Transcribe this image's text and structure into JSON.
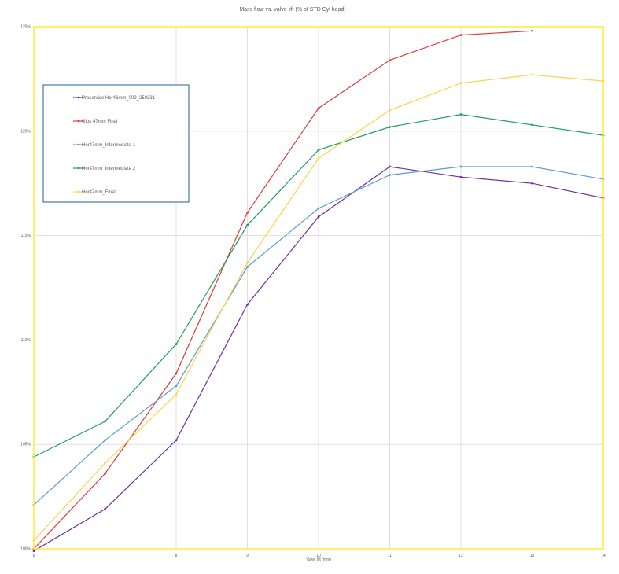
{
  "chart_data": {
    "type": "line",
    "title": "Mass flow vs. valve lift (% of STD Cyl head)",
    "xlabel": "Valve lift (mm)",
    "ylabel": "",
    "xlim": [
      6,
      14
    ],
    "ylim": [
      100,
      125
    ],
    "x_ticks": [
      "6",
      "7",
      "8",
      "9",
      "10",
      "11",
      "12",
      "13",
      "14"
    ],
    "y_ticks": [
      "100%",
      "105%",
      "110%",
      "115%",
      "120%",
      "125%"
    ],
    "grid": true,
    "legend_position": "top-left",
    "plot_border_color": "#FFEB3B",
    "legend_border_color": "#1F5F8B",
    "series": [
      {
        "name": "Proservice Hor46mm_002_250331",
        "color": "#7030A0",
        "x": [
          6,
          7,
          8,
          9,
          10,
          11,
          12,
          13,
          14
        ],
        "y": [
          99.9,
          101.9,
          105.2,
          111.7,
          115.9,
          118.3,
          117.8,
          117.5,
          116.8
        ]
      },
      {
        "name": "Gips 47mm Final",
        "color": "#E53935",
        "x": [
          6,
          7,
          8,
          9,
          10,
          11,
          12,
          13
        ],
        "y": [
          100.0,
          103.6,
          108.4,
          116.1,
          121.1,
          123.4,
          124.6,
          124.8
        ]
      },
      {
        "name": "Hor47mm_Intermediate 1",
        "color": "#5B9BD5",
        "x": [
          6,
          7,
          8,
          9,
          10,
          11,
          12,
          13,
          14
        ],
        "y": [
          102.1,
          105.2,
          107.8,
          113.5,
          116.3,
          117.9,
          118.3,
          118.3,
          117.7
        ]
      },
      {
        "name": "Hor47mm_Intermediate 2",
        "color": "#1EA05A",
        "x": [
          6,
          7,
          8,
          9,
          10,
          11,
          12,
          13,
          14
        ],
        "y": [
          104.4,
          106.1,
          109.8,
          115.5,
          119.1,
          120.2,
          120.8,
          120.3,
          119.8
        ]
      },
      {
        "name": "Hor47mm_Final",
        "color": "#FFD24D",
        "x": [
          6,
          7,
          8,
          9,
          10,
          11,
          12,
          13,
          14
        ],
        "y": [
          100.4,
          104.1,
          107.4,
          113.7,
          118.7,
          121.0,
          122.3,
          122.7,
          122.4
        ]
      }
    ]
  }
}
